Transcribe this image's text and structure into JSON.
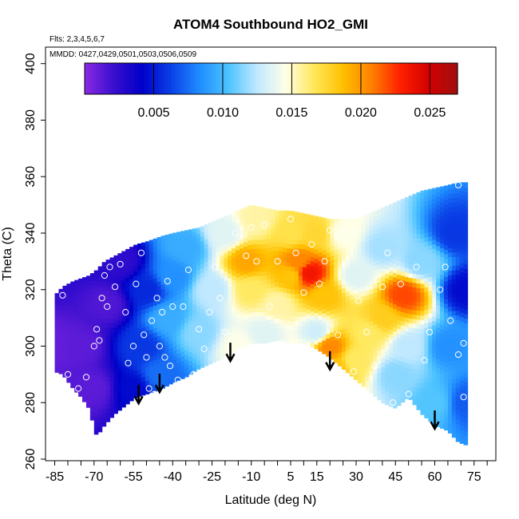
{
  "chart_data": {
    "type": "heatmap",
    "title": "ATOM4 Southbound HO2_GMI",
    "notes": [
      "Flts: 2,3,4,5,6,7",
      "MMDD: 0427,0429,0501,0503,0506,0509"
    ],
    "xlabel": "Latitude (deg N)",
    "ylabel": "Theta (C)",
    "xlim": [
      -87,
      83
    ],
    "ylim": [
      260,
      405
    ],
    "x_ticks": [
      -85,
      -70,
      -55,
      -40,
      -25,
      -10,
      5,
      15,
      30,
      45,
      60,
      75
    ],
    "y_ticks": [
      260,
      280,
      300,
      320,
      340,
      360,
      380,
      400
    ],
    "colorbar": {
      "range": [
        0,
        0.027
      ],
      "ticks": [
        "0.005",
        "0.010",
        "0.015",
        "0.020",
        "0.025"
      ],
      "tick_values": [
        0.005,
        0.01,
        0.015,
        0.02,
        0.025
      ],
      "colors": [
        "#8a2be2",
        "#3a0fcf",
        "#0000c8",
        "#0a3fe6",
        "#1f8cff",
        "#4cc3ff",
        "#bfe8ff",
        "#ffffe8",
        "#ffe85a",
        "#ffc000",
        "#ff8000",
        "#ff2000",
        "#d20000",
        "#a01010"
      ]
    },
    "boundary": {
      "lat": [
        -85,
        -82,
        -78,
        -75,
        -72,
        -69,
        -66,
        -62,
        -58,
        -54,
        -50,
        -47,
        -44,
        -40,
        -35,
        -30,
        -25,
        -20,
        -15,
        -10,
        -5,
        0,
        5,
        10,
        15,
        20,
        25,
        30,
        35,
        40,
        45,
        50,
        55,
        60,
        65,
        69,
        72
      ],
      "top": [
        318,
        321,
        323,
        324,
        325,
        327,
        330,
        332,
        334,
        336,
        337,
        338,
        339,
        340,
        341,
        342,
        344,
        346,
        348,
        350,
        349,
        348,
        348,
        347,
        346,
        345,
        345,
        345,
        347,
        349,
        351,
        353,
        355,
        356,
        357,
        358,
        358
      ],
      "bottom": [
        291,
        290,
        285,
        282,
        278,
        268,
        272,
        276,
        279,
        282,
        283,
        284,
        285,
        287,
        289,
        292,
        294,
        296,
        299,
        301,
        301,
        302,
        301,
        301,
        299,
        296,
        292,
        288,
        284,
        280,
        278,
        282,
        276,
        272,
        270,
        266,
        265
      ]
    },
    "field_anchors": [
      {
        "lat": -85,
        "theta": 300,
        "value": 0.001
      },
      {
        "lat": -75,
        "theta": 300,
        "value": 0.0012
      },
      {
        "lat": -70,
        "theta": 285,
        "value": 0.0012
      },
      {
        "lat": -65,
        "theta": 315,
        "value": 0.0015
      },
      {
        "lat": -60,
        "theta": 330,
        "value": 0.0025
      },
      {
        "lat": -55,
        "theta": 285,
        "value": 0.0045
      },
      {
        "lat": -52,
        "theta": 300,
        "value": 0.006
      },
      {
        "lat": -50,
        "theta": 320,
        "value": 0.0055
      },
      {
        "lat": -45,
        "theta": 290,
        "value": 0.0075
      },
      {
        "lat": -42,
        "theta": 310,
        "value": 0.0095
      },
      {
        "lat": -40,
        "theta": 325,
        "value": 0.0085
      },
      {
        "lat": -35,
        "theta": 335,
        "value": 0.0095
      },
      {
        "lat": -30,
        "theta": 305,
        "value": 0.0115
      },
      {
        "lat": -25,
        "theta": 320,
        "value": 0.0125
      },
      {
        "lat": -20,
        "theta": 340,
        "value": 0.0135
      },
      {
        "lat": -15,
        "theta": 300,
        "value": 0.0145
      },
      {
        "lat": -12,
        "theta": 330,
        "value": 0.0195
      },
      {
        "lat": -10,
        "theta": 320,
        "value": 0.0165
      },
      {
        "lat": -8,
        "theta": 345,
        "value": 0.0155
      },
      {
        "lat": -5,
        "theta": 305,
        "value": 0.0135
      },
      {
        "lat": 0,
        "theta": 315,
        "value": 0.0155
      },
      {
        "lat": 5,
        "theta": 325,
        "value": 0.0185
      },
      {
        "lat": 5,
        "theta": 340,
        "value": 0.017
      },
      {
        "lat": 8,
        "theta": 330,
        "value": 0.0205
      },
      {
        "lat": 12,
        "theta": 326,
        "value": 0.0235
      },
      {
        "lat": 15,
        "theta": 340,
        "value": 0.0175
      },
      {
        "lat": 15,
        "theta": 305,
        "value": 0.013
      },
      {
        "lat": 18,
        "theta": 318,
        "value": 0.0185
      },
      {
        "lat": 20,
        "theta": 300,
        "value": 0.0205
      },
      {
        "lat": 22,
        "theta": 292,
        "value": 0.0185
      },
      {
        "lat": 25,
        "theta": 340,
        "value": 0.0145
      },
      {
        "lat": 30,
        "theta": 325,
        "value": 0.0135
      },
      {
        "lat": 30,
        "theta": 295,
        "value": 0.0165
      },
      {
        "lat": 35,
        "theta": 305,
        "value": 0.0165
      },
      {
        "lat": 40,
        "theta": 310,
        "value": 0.018
      },
      {
        "lat": 40,
        "theta": 335,
        "value": 0.012
      },
      {
        "lat": 45,
        "theta": 290,
        "value": 0.0115
      },
      {
        "lat": 48,
        "theta": 318,
        "value": 0.022
      },
      {
        "lat": 50,
        "theta": 300,
        "value": 0.0125
      },
      {
        "lat": 55,
        "theta": 330,
        "value": 0.0115
      },
      {
        "lat": 60,
        "theta": 280,
        "value": 0.0105
      },
      {
        "lat": 65,
        "theta": 300,
        "value": 0.0085
      },
      {
        "lat": 68,
        "theta": 340,
        "value": 0.006
      },
      {
        "lat": 72,
        "theta": 280,
        "value": 0.007
      },
      {
        "lat": 72,
        "theta": 320,
        "value": 0.0045
      }
    ],
    "sample_points": [
      [
        -82,
        318
      ],
      [
        -80,
        290
      ],
      [
        -76,
        285
      ],
      [
        -73,
        289
      ],
      [
        -70,
        300
      ],
      [
        -69,
        306
      ],
      [
        -68,
        302
      ],
      [
        -67,
        317
      ],
      [
        -66,
        325
      ],
      [
        -65,
        314
      ],
      [
        -64,
        328
      ],
      [
        -62,
        321
      ],
      [
        -60,
        329
      ],
      [
        -58,
        312
      ],
      [
        -57,
        294
      ],
      [
        -55,
        300
      ],
      [
        -54,
        322
      ],
      [
        -52,
        333
      ],
      [
        -51,
        304
      ],
      [
        -50,
        296
      ],
      [
        -49,
        285
      ],
      [
        -48,
        309
      ],
      [
        -47,
        283
      ],
      [
        -46,
        317
      ],
      [
        -45,
        300
      ],
      [
        -44,
        312
      ],
      [
        -43,
        296
      ],
      [
        -42,
        323
      ],
      [
        -41,
        293
      ],
      [
        -40,
        314
      ],
      [
        -38,
        288
      ],
      [
        -36,
        314
      ],
      [
        -34,
        327
      ],
      [
        -32,
        290
      ],
      [
        -30,
        306
      ],
      [
        -28,
        299
      ],
      [
        -26,
        312
      ],
      [
        -24,
        328
      ],
      [
        -22,
        317
      ],
      [
        -20,
        305
      ],
      [
        -18,
        296
      ],
      [
        -16,
        340
      ],
      [
        -12,
        332
      ],
      [
        -10,
        342
      ],
      [
        -8,
        330
      ],
      [
        -5,
        343
      ],
      [
        -3,
        314
      ],
      [
        0,
        330
      ],
      [
        2,
        301
      ],
      [
        5,
        345
      ],
      [
        7,
        333
      ],
      [
        10,
        319
      ],
      [
        13,
        336
      ],
      [
        16,
        322
      ],
      [
        18,
        330
      ],
      [
        20,
        341
      ],
      [
        23,
        304
      ],
      [
        26,
        329
      ],
      [
        29,
        291
      ],
      [
        31,
        316
      ],
      [
        34,
        305
      ],
      [
        37,
        293
      ],
      [
        40,
        321
      ],
      [
        42,
        333
      ],
      [
        44,
        280
      ],
      [
        47,
        322
      ],
      [
        50,
        283
      ],
      [
        53,
        328
      ],
      [
        56,
        295
      ],
      [
        58,
        305
      ],
      [
        62,
        320
      ],
      [
        64,
        328
      ],
      [
        66,
        309
      ],
      [
        69,
        297
      ],
      [
        71,
        282
      ],
      [
        71,
        301
      ],
      [
        69,
        357
      ]
    ],
    "arrows": [
      {
        "lat": -53,
        "theta": 280
      },
      {
        "lat": -45,
        "theta": 284
      },
      {
        "lat": -18,
        "theta": 295
      },
      {
        "lat": 20,
        "theta": 292
      },
      {
        "lat": 60,
        "theta": 271
      }
    ]
  }
}
